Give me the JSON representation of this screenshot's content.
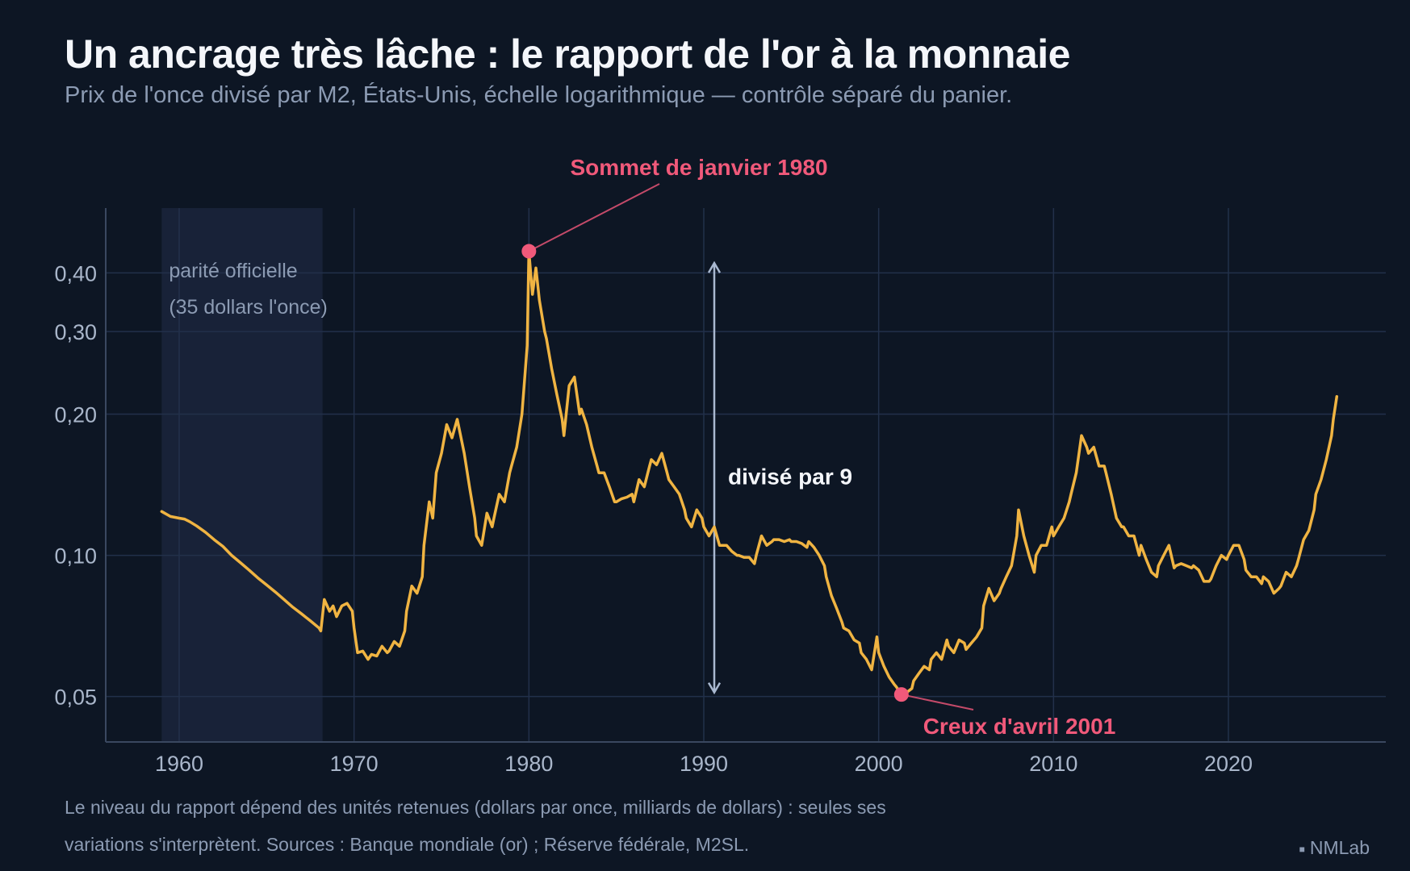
{
  "title": "Un ancrage très lâche : le rapport de l'or à la monnaie",
  "subtitle": "Prix de l'once divisé par M2, États-Unis, échelle logarithmique — contrôle séparé du panier.",
  "note": [
    "Le niveau du rapport dépend des unités retenues (dollars par once, milliards de dollars) : seules ses",
    "variations s'interprètent. Sources : Banque mondiale (or) ; Réserve fédérale, M2SL."
  ],
  "brand": "NMLab",
  "colors": {
    "background": "#0d1624",
    "line": "#f0b442",
    "accent": "#f0597a",
    "shade": "#182238",
    "grid": "#22304a",
    "muted": "#8c9bb3",
    "arrow": "#a9b8d0"
  },
  "chart_data": {
    "type": "line",
    "title": "Un ancrage très lâche : le rapport de l'or à la monnaie",
    "xlabel": "",
    "ylabel": "",
    "yscale": "log",
    "xlim": [
      1955.8,
      2029
    ],
    "ylim": [
      0.04,
      0.55
    ],
    "grid": true,
    "x_ticks": [
      1960,
      1970,
      1980,
      1990,
      2000,
      2010,
      2020
    ],
    "x_tick_labels": [
      "1960",
      "1970",
      "1980",
      "1990",
      "2000",
      "2010",
      "2020"
    ],
    "y_ticks": [
      0.05,
      0.1,
      0.2,
      0.3,
      0.4
    ],
    "y_tick_labels": [
      "0,05",
      "0,10",
      "0,20",
      "0,30",
      "0,40"
    ],
    "shaded_period": {
      "x": [
        1959,
        1968.2
      ],
      "label": [
        "parité officielle",
        "(35 dollars l'once)"
      ]
    },
    "annotations": {
      "peak": {
        "x": 1980.0,
        "y": 0.445,
        "label": "Sommet de janvier 1980"
      },
      "trough": {
        "x": 2001.3,
        "y": 0.0505,
        "label": "Creux d'avril 2001"
      },
      "ratio": {
        "x": 1990.6,
        "y_from": 0.051,
        "y_to": 0.42,
        "label": "divisé par 9"
      }
    },
    "series": [
      {
        "points": [
          [
            1959.0,
            0.124
          ],
          [
            1959.5,
            0.121
          ],
          [
            1960.0,
            0.12
          ],
          [
            1960.3,
            0.1195
          ],
          [
            1960.6,
            0.118
          ],
          [
            1961.0,
            0.1155
          ],
          [
            1961.5,
            0.112
          ],
          [
            1962.0,
            0.108
          ],
          [
            1962.5,
            0.1045
          ],
          [
            1963.0,
            0.1
          ],
          [
            1963.5,
            0.0965
          ],
          [
            1964.0,
            0.093
          ],
          [
            1964.5,
            0.0895
          ],
          [
            1965.0,
            0.0865
          ],
          [
            1965.5,
            0.0835
          ],
          [
            1966.0,
            0.0805
          ],
          [
            1966.5,
            0.0775
          ],
          [
            1967.0,
            0.075
          ],
          [
            1967.5,
            0.0725
          ],
          [
            1968.0,
            0.07
          ],
          [
            1968.1,
            0.069
          ],
          [
            1968.3,
            0.0805
          ],
          [
            1968.6,
            0.076
          ],
          [
            1968.8,
            0.078
          ],
          [
            1969.0,
            0.074
          ],
          [
            1969.3,
            0.078
          ],
          [
            1969.6,
            0.079
          ],
          [
            1969.9,
            0.076
          ],
          [
            1970.0,
            0.07
          ],
          [
            1970.2,
            0.062
          ],
          [
            1970.5,
            0.0625
          ],
          [
            1970.8,
            0.06
          ],
          [
            1971.0,
            0.0615
          ],
          [
            1971.3,
            0.061
          ],
          [
            1971.6,
            0.064
          ],
          [
            1971.9,
            0.062
          ],
          [
            1972.0,
            0.0625
          ],
          [
            1972.3,
            0.0655
          ],
          [
            1972.6,
            0.064
          ],
          [
            1972.9,
            0.069
          ],
          [
            1973.0,
            0.076
          ],
          [
            1973.3,
            0.086
          ],
          [
            1973.6,
            0.083
          ],
          [
            1973.9,
            0.09
          ],
          [
            1974.0,
            0.105
          ],
          [
            1974.3,
            0.13
          ],
          [
            1974.5,
            0.12
          ],
          [
            1974.7,
            0.15
          ],
          [
            1975.0,
            0.165
          ],
          [
            1975.3,
            0.19
          ],
          [
            1975.6,
            0.178
          ],
          [
            1975.9,
            0.195
          ],
          [
            1976.0,
            0.187
          ],
          [
            1976.3,
            0.165
          ],
          [
            1976.6,
            0.14
          ],
          [
            1976.9,
            0.12
          ],
          [
            1977.0,
            0.11
          ],
          [
            1977.3,
            0.105
          ],
          [
            1977.6,
            0.123
          ],
          [
            1977.9,
            0.115
          ],
          [
            1978.0,
            0.12
          ],
          [
            1978.3,
            0.135
          ],
          [
            1978.6,
            0.13
          ],
          [
            1978.9,
            0.15
          ],
          [
            1979.0,
            0.155
          ],
          [
            1979.3,
            0.17
          ],
          [
            1979.6,
            0.2
          ],
          [
            1979.9,
            0.28
          ],
          [
            1980.0,
            0.445
          ],
          [
            1980.2,
            0.36
          ],
          [
            1980.4,
            0.41
          ],
          [
            1980.6,
            0.35
          ],
          [
            1980.9,
            0.3
          ],
          [
            1981.0,
            0.29
          ],
          [
            1981.3,
            0.25
          ],
          [
            1981.6,
            0.22
          ],
          [
            1981.9,
            0.195
          ],
          [
            1982.0,
            0.18
          ],
          [
            1982.3,
            0.23
          ],
          [
            1982.6,
            0.24
          ],
          [
            1982.9,
            0.2
          ],
          [
            1983.0,
            0.205
          ],
          [
            1983.3,
            0.19
          ],
          [
            1983.6,
            0.17
          ],
          [
            1983.9,
            0.155
          ],
          [
            1984.0,
            0.15
          ],
          [
            1984.3,
            0.15
          ],
          [
            1984.6,
            0.14
          ],
          [
            1984.9,
            0.13
          ],
          [
            1985.0,
            0.13
          ],
          [
            1985.3,
            0.132
          ],
          [
            1985.6,
            0.133
          ],
          [
            1985.9,
            0.135
          ],
          [
            1986.0,
            0.13
          ],
          [
            1986.3,
            0.145
          ],
          [
            1986.6,
            0.14
          ],
          [
            1986.9,
            0.155
          ],
          [
            1987.0,
            0.16
          ],
          [
            1987.3,
            0.156
          ],
          [
            1987.6,
            0.165
          ],
          [
            1987.9,
            0.15
          ],
          [
            1988.0,
            0.145
          ],
          [
            1988.3,
            0.14
          ],
          [
            1988.6,
            0.135
          ],
          [
            1988.9,
            0.125
          ],
          [
            1989.0,
            0.12
          ],
          [
            1989.3,
            0.115
          ],
          [
            1989.6,
            0.125
          ],
          [
            1989.9,
            0.12
          ],
          [
            1990.0,
            0.115
          ],
          [
            1990.3,
            0.11
          ],
          [
            1990.6,
            0.115
          ],
          [
            1990.9,
            0.105
          ],
          [
            1991.0,
            0.105
          ],
          [
            1991.3,
            0.105
          ],
          [
            1991.6,
            0.102
          ],
          [
            1991.9,
            0.1
          ],
          [
            1992.0,
            0.1
          ],
          [
            1992.3,
            0.099
          ],
          [
            1992.6,
            0.099
          ],
          [
            1992.9,
            0.096
          ],
          [
            1993.0,
            0.1
          ],
          [
            1993.3,
            0.11
          ],
          [
            1993.6,
            0.105
          ],
          [
            1993.9,
            0.107
          ],
          [
            1994.0,
            0.108
          ],
          [
            1994.3,
            0.108
          ],
          [
            1994.6,
            0.107
          ],
          [
            1994.9,
            0.108
          ],
          [
            1995.0,
            0.107
          ],
          [
            1995.3,
            0.107
          ],
          [
            1995.6,
            0.106
          ],
          [
            1995.9,
            0.104
          ],
          [
            1996.0,
            0.107
          ],
          [
            1996.3,
            0.104
          ],
          [
            1996.6,
            0.1
          ],
          [
            1996.9,
            0.095
          ],
          [
            1997.0,
            0.09
          ],
          [
            1997.3,
            0.082
          ],
          [
            1997.6,
            0.077
          ],
          [
            1997.9,
            0.072
          ],
          [
            1998.0,
            0.07
          ],
          [
            1998.3,
            0.069
          ],
          [
            1998.6,
            0.066
          ],
          [
            1998.9,
            0.065
          ],
          [
            1999.0,
            0.062
          ],
          [
            1999.3,
            0.06
          ],
          [
            1999.6,
            0.057
          ],
          [
            1999.9,
            0.067
          ],
          [
            2000.0,
            0.062
          ],
          [
            2000.3,
            0.058
          ],
          [
            2000.6,
            0.055
          ],
          [
            2000.9,
            0.053
          ],
          [
            2001.0,
            0.0525
          ],
          [
            2001.3,
            0.0505
          ],
          [
            2001.6,
            0.051
          ],
          [
            2001.9,
            0.052
          ],
          [
            2002.0,
            0.054
          ],
          [
            2002.3,
            0.056
          ],
          [
            2002.6,
            0.058
          ],
          [
            2002.9,
            0.057
          ],
          [
            2003.0,
            0.06
          ],
          [
            2003.3,
            0.062
          ],
          [
            2003.6,
            0.06
          ],
          [
            2003.9,
            0.066
          ],
          [
            2004.0,
            0.064
          ],
          [
            2004.3,
            0.062
          ],
          [
            2004.6,
            0.066
          ],
          [
            2004.9,
            0.065
          ],
          [
            2005.0,
            0.063
          ],
          [
            2005.3,
            0.065
          ],
          [
            2005.6,
            0.067
          ],
          [
            2005.9,
            0.07
          ],
          [
            2006.0,
            0.078
          ],
          [
            2006.3,
            0.085
          ],
          [
            2006.6,
            0.08
          ],
          [
            2006.9,
            0.083
          ],
          [
            2007.0,
            0.085
          ],
          [
            2007.3,
            0.09
          ],
          [
            2007.6,
            0.095
          ],
          [
            2007.9,
            0.11
          ],
          [
            2008.0,
            0.125
          ],
          [
            2008.3,
            0.11
          ],
          [
            2008.6,
            0.1
          ],
          [
            2008.9,
            0.092
          ],
          [
            2009.0,
            0.1
          ],
          [
            2009.3,
            0.105
          ],
          [
            2009.6,
            0.105
          ],
          [
            2009.9,
            0.115
          ],
          [
            2010.0,
            0.11
          ],
          [
            2010.3,
            0.115
          ],
          [
            2010.6,
            0.12
          ],
          [
            2010.9,
            0.13
          ],
          [
            2011.0,
            0.135
          ],
          [
            2011.3,
            0.15
          ],
          [
            2011.6,
            0.18
          ],
          [
            2011.9,
            0.17
          ],
          [
            2012.0,
            0.165
          ],
          [
            2012.3,
            0.17
          ],
          [
            2012.6,
            0.155
          ],
          [
            2012.9,
            0.155
          ],
          [
            2013.0,
            0.15
          ],
          [
            2013.3,
            0.135
          ],
          [
            2013.6,
            0.12
          ],
          [
            2013.9,
            0.115
          ],
          [
            2014.0,
            0.115
          ],
          [
            2014.3,
            0.11
          ],
          [
            2014.6,
            0.11
          ],
          [
            2014.9,
            0.1
          ],
          [
            2015.0,
            0.105
          ],
          [
            2015.3,
            0.098
          ],
          [
            2015.6,
            0.092
          ],
          [
            2015.9,
            0.09
          ],
          [
            2016.0,
            0.095
          ],
          [
            2016.3,
            0.1
          ],
          [
            2016.6,
            0.105
          ],
          [
            2016.9,
            0.094
          ],
          [
            2017.0,
            0.095
          ],
          [
            2017.3,
            0.096
          ],
          [
            2017.6,
            0.095
          ],
          [
            2017.9,
            0.094
          ],
          [
            2018.0,
            0.095
          ],
          [
            2018.3,
            0.093
          ],
          [
            2018.6,
            0.088
          ],
          [
            2018.9,
            0.088
          ],
          [
            2019.0,
            0.089
          ],
          [
            2019.3,
            0.095
          ],
          [
            2019.6,
            0.1
          ],
          [
            2019.9,
            0.098
          ],
          [
            2020.0,
            0.1
          ],
          [
            2020.3,
            0.105
          ],
          [
            2020.6,
            0.105
          ],
          [
            2020.9,
            0.098
          ],
          [
            2021.0,
            0.093
          ],
          [
            2021.3,
            0.09
          ],
          [
            2021.6,
            0.09
          ],
          [
            2021.9,
            0.087
          ],
          [
            2022.0,
            0.09
          ],
          [
            2022.3,
            0.088
          ],
          [
            2022.6,
            0.083
          ],
          [
            2022.9,
            0.085
          ],
          [
            2023.0,
            0.086
          ],
          [
            2023.3,
            0.092
          ],
          [
            2023.6,
            0.09
          ],
          [
            2023.9,
            0.095
          ],
          [
            2024.0,
            0.098
          ],
          [
            2024.3,
            0.108
          ],
          [
            2024.6,
            0.113
          ],
          [
            2024.9,
            0.125
          ],
          [
            2025.0,
            0.135
          ],
          [
            2025.3,
            0.145
          ],
          [
            2025.6,
            0.16
          ],
          [
            2025.9,
            0.18
          ],
          [
            2026.0,
            0.195
          ],
          [
            2026.2,
            0.218
          ]
        ]
      }
    ]
  }
}
